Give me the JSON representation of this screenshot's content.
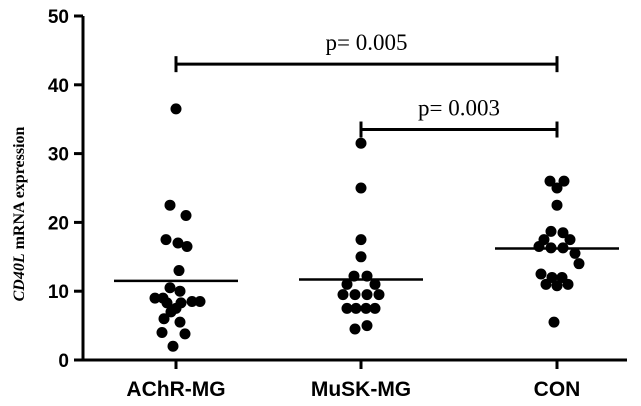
{
  "chart_data": {
    "type": "scatter",
    "ylabel_italic": "CD40L",
    "ylabel_rest": " mRNA expression",
    "ylim": [
      0,
      50
    ],
    "yticks": [
      0,
      10,
      20,
      30,
      40,
      50
    ],
    "categories": [
      "AChR-MG",
      "MuSK-MG",
      "CON"
    ],
    "groups": [
      {
        "name": "AChR-MG",
        "mean": 11.5,
        "points": [
          {
            "y": 36.5,
            "dx": 0
          },
          {
            "y": 22.5,
            "dx": -0.6
          },
          {
            "y": 21,
            "dx": 1
          },
          {
            "y": 17.5,
            "dx": -1
          },
          {
            "y": 17,
            "dx": 0.2
          },
          {
            "y": 16.5,
            "dx": 1.1
          },
          {
            "y": 13,
            "dx": 0.3
          },
          {
            "y": 10.5,
            "dx": -0.6
          },
          {
            "y": 10,
            "dx": 0.4
          },
          {
            "y": 9,
            "dx": -2.1
          },
          {
            "y": 9,
            "dx": -1.3
          },
          {
            "y": 8.5,
            "dx": 1.6
          },
          {
            "y": 8.5,
            "dx": 2.4
          },
          {
            "y": 8.3,
            "dx": -0.9
          },
          {
            "y": 8.3,
            "dx": 0.5
          },
          {
            "y": 7.5,
            "dx": 0
          },
          {
            "y": 7,
            "dx": -0.5
          },
          {
            "y": 6,
            "dx": -1.2
          },
          {
            "y": 5.5,
            "dx": 0.4
          },
          {
            "y": 4,
            "dx": -1.4
          },
          {
            "y": 3.8,
            "dx": 0.9
          },
          {
            "y": 2,
            "dx": -0.3
          }
        ]
      },
      {
        "name": "MuSK-MG",
        "mean": 11.7,
        "points": [
          {
            "y": 31.5,
            "dx": 0
          },
          {
            "y": 25,
            "dx": 0
          },
          {
            "y": 17.5,
            "dx": 0
          },
          {
            "y": 15,
            "dx": 0
          },
          {
            "y": 12.2,
            "dx": -0.7
          },
          {
            "y": 12.2,
            "dx": 0.6
          },
          {
            "y": 11,
            "dx": -1.4
          },
          {
            "y": 11,
            "dx": 1.4
          },
          {
            "y": 9.5,
            "dx": -1.8
          },
          {
            "y": 9.5,
            "dx": -0.6
          },
          {
            "y": 9.5,
            "dx": 0.6
          },
          {
            "y": 9.5,
            "dx": 1.8
          },
          {
            "y": 7.5,
            "dx": -1.4
          },
          {
            "y": 7.5,
            "dx": -0.5
          },
          {
            "y": 7.5,
            "dx": 0.5
          },
          {
            "y": 7.5,
            "dx": 1.4
          },
          {
            "y": 5,
            "dx": 0.6
          },
          {
            "y": 4.5,
            "dx": -0.6
          }
        ]
      },
      {
        "name": "CON",
        "mean": 16.2,
        "points": [
          {
            "y": 26,
            "dx": -0.7
          },
          {
            "y": 26,
            "dx": 0.7
          },
          {
            "y": 25,
            "dx": 0
          },
          {
            "y": 22.5,
            "dx": 0
          },
          {
            "y": 18.7,
            "dx": -0.6
          },
          {
            "y": 18.5,
            "dx": 0.6
          },
          {
            "y": 17.5,
            "dx": -1.3
          },
          {
            "y": 17.5,
            "dx": 1.3
          },
          {
            "y": 16.5,
            "dx": -1.8
          },
          {
            "y": 16.3,
            "dx": -0.6
          },
          {
            "y": 16.3,
            "dx": 0.6
          },
          {
            "y": 15.5,
            "dx": 1.8
          },
          {
            "y": 14,
            "dx": 2.2
          },
          {
            "y": 12.5,
            "dx": -1.6
          },
          {
            "y": 12,
            "dx": -0.5
          },
          {
            "y": 12,
            "dx": 0.5
          },
          {
            "y": 11,
            "dx": -1.1
          },
          {
            "y": 11,
            "dx": 1.1
          },
          {
            "y": 10.8,
            "dx": 0
          },
          {
            "y": 5.5,
            "dx": -0.3
          }
        ]
      }
    ],
    "comparisons": [
      {
        "from": "AChR-MG",
        "to": "CON",
        "y": 43,
        "label": "p= 0.005"
      },
      {
        "from": "MuSK-MG",
        "to": "CON",
        "y": 33.5,
        "label": "p= 0.003"
      }
    ],
    "grid": false,
    "legend": "none"
  }
}
